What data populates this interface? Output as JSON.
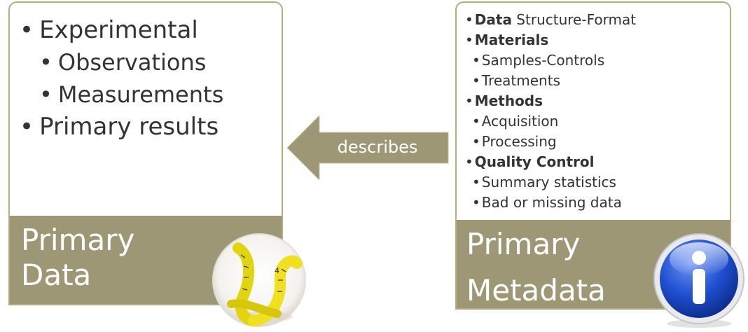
{
  "left_card": {
    "title_line1": "Primary",
    "title_line2": "Data",
    "items": [
      {
        "text": "Experimental",
        "level": 1
      },
      {
        "text": "Observations",
        "level": 2
      },
      {
        "text": "Measurements",
        "level": 2
      },
      {
        "text": "Primary results",
        "level": 1
      }
    ]
  },
  "arrow": {
    "label": "describes",
    "color": "#9e9776"
  },
  "right_card": {
    "title_line1": "Primary",
    "title_line2": "Metadata",
    "items": [
      {
        "bold": "Data",
        "rest": " Structure-Format",
        "level": 1
      },
      {
        "bold": "Materials",
        "rest": "",
        "level": 1
      },
      {
        "bold": "",
        "rest": "Samples-Controls",
        "level": 2
      },
      {
        "bold": "",
        "rest": "Treatments",
        "level": 2
      },
      {
        "bold": "Methods",
        "rest": "",
        "level": 1
      },
      {
        "bold": "",
        "rest": "Acquisition",
        "level": 2
      },
      {
        "bold": "",
        "rest": "Processing",
        "level": 2
      },
      {
        "bold": "Quality Control",
        "rest": "",
        "level": 1
      },
      {
        "bold": "",
        "rest": "Summary statistics",
        "level": 2
      },
      {
        "bold": "",
        "rest": "Bad or missing data",
        "level": 2
      }
    ]
  },
  "colors": {
    "accent": "#9e9776",
    "border": "#b3ab84",
    "text": "#333333",
    "info_blue": "#1f4fd1"
  },
  "icons": {
    "left_image": "tape-measure-icon",
    "right_image": "info-icon"
  }
}
